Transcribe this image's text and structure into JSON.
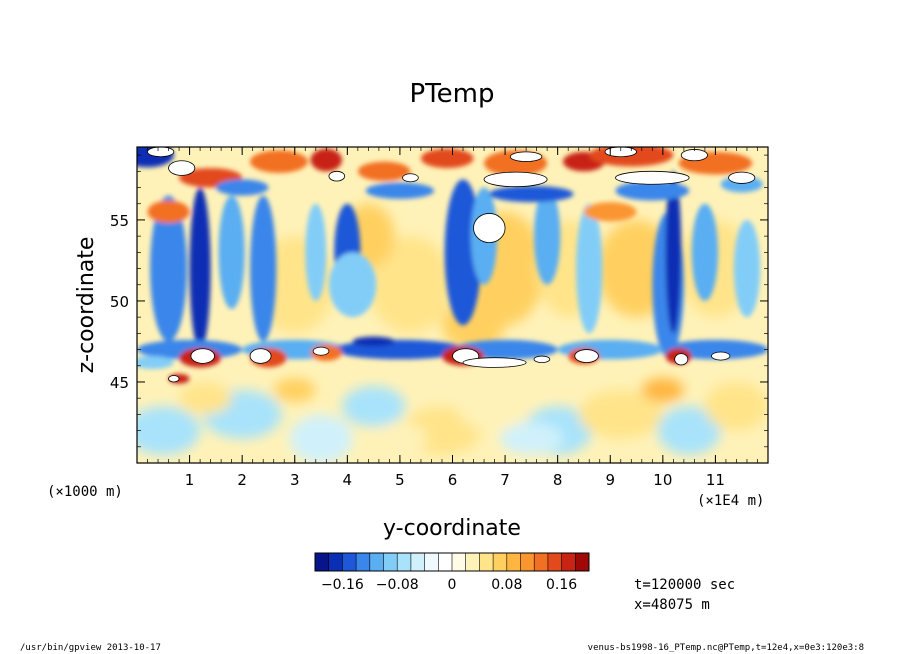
{
  "chart_data": {
    "type": "heatmap",
    "title": "PTemp",
    "xlabel": "y-coordinate",
    "ylabel": "z-coordinate",
    "x_unit_label": "(×1E4 m)",
    "y_unit_label": "(×1000 m)",
    "xlim": [
      0,
      12
    ],
    "ylim": [
      40,
      59.5
    ],
    "x_ticks": [
      1,
      2,
      3,
      4,
      5,
      6,
      7,
      8,
      9,
      10,
      11
    ],
    "y_ticks": [
      45,
      50,
      55
    ],
    "colorbar": {
      "range": [
        -0.2,
        0.2
      ],
      "labels": [
        "−0.16",
        "−0.08",
        "0",
        "0.08",
        "0.16"
      ],
      "label_values": [
        -0.16,
        -0.08,
        0,
        0.08,
        0.16
      ],
      "colors": [
        "#08148a",
        "#0a2fb4",
        "#1e58d8",
        "#3a86ea",
        "#5aaef2",
        "#82cdf8",
        "#a8e3fb",
        "#d0f1fb",
        "#eefafd",
        "#ffffff",
        "#fffbe6",
        "#fff2b8",
        "#ffe48a",
        "#ffd060",
        "#ffb640",
        "#fa9530",
        "#f27024",
        "#e24a1c",
        "#c82414",
        "#a00808"
      ]
    },
    "time_label": "t=120000 sec",
    "x_position_label": "x=48075 m",
    "footer_left": "/usr/bin/gpview   2013-10-17",
    "footer_right": "venus-bs1998-16_PTemp.nc@PTemp,t=12e4,x=0e3:120e3:8"
  }
}
